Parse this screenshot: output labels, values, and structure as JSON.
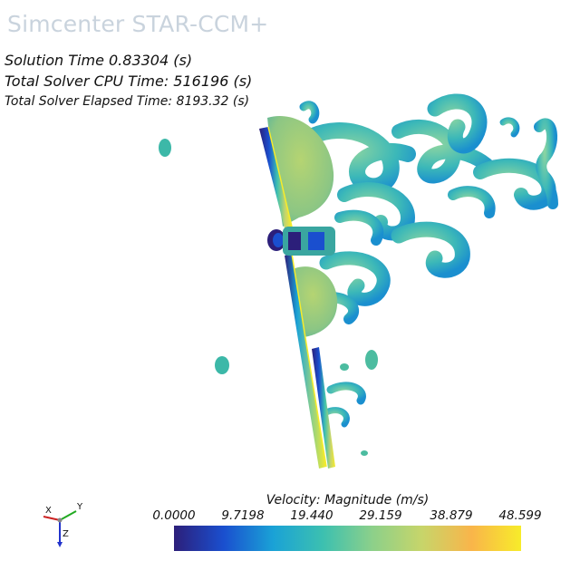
{
  "header": {
    "app_title": "Simcenter STAR-CCM+"
  },
  "stats": {
    "solution_time": "Solution Time 0.83304 (s)",
    "cpu_time": "Total Solver CPU Time: 516196 (s)",
    "elapsed_time": "Total Solver Elapsed Time: 8193.32 (s)"
  },
  "legend": {
    "title": "Velocity: Magnitude (m/s)",
    "ticks": [
      "0.0000",
      "9.7198",
      "19.440",
      "29.159",
      "38.879",
      "48.599"
    ],
    "range": [
      0,
      48.599
    ],
    "colormap": [
      "#2c1f7a",
      "#1a4fcf",
      "#1aa2d6",
      "#3cc0b0",
      "#8cd08a",
      "#c7d56a",
      "#f9b54a",
      "#f7ec2a"
    ]
  },
  "triad": {
    "x_label": "X",
    "y_label": "Y",
    "z_label": "Z"
  }
}
